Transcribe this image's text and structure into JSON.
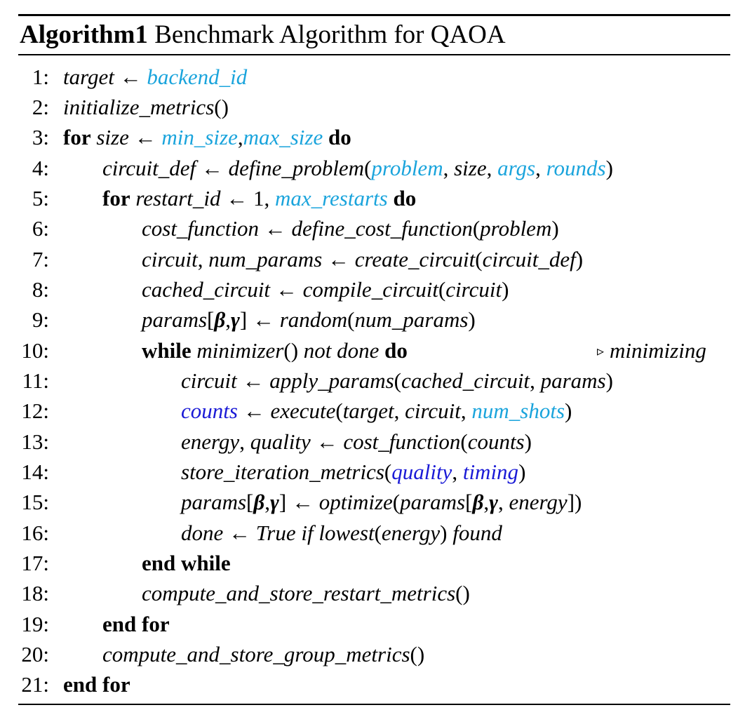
{
  "title": {
    "label": "Algorithm1",
    "text": "Benchmark Algorithm for QAOA"
  },
  "lines": [
    {
      "num": "1:"
    },
    {
      "num": "2:"
    },
    {
      "num": "3:"
    },
    {
      "num": "4:"
    },
    {
      "num": "5:"
    },
    {
      "num": "6:"
    },
    {
      "num": "7:"
    },
    {
      "num": "8:"
    },
    {
      "num": "9:"
    },
    {
      "num": "10:"
    },
    {
      "num": "11:"
    },
    {
      "num": "12:"
    },
    {
      "num": "13:"
    },
    {
      "num": "14:"
    },
    {
      "num": "15:"
    },
    {
      "num": "16:"
    },
    {
      "num": "17:"
    },
    {
      "num": "18:"
    },
    {
      "num": "19:"
    },
    {
      "num": "20:"
    },
    {
      "num": "21:"
    }
  ],
  "tokens": {
    "target": "target",
    "arrow": "←",
    "backend_id": "backend_id",
    "initialize_metrics": "initialize_metrics",
    "parens_empty": "()",
    "for": "for",
    "do": "do",
    "size": "size",
    "min_size": "min_size",
    "comma": ",",
    "max_size": "max_size",
    "circuit_def": "circuit_def",
    "define_problem": "define_problem",
    "lparen": "(",
    "rparen": ")",
    "problem": "problem",
    "args": "args",
    "rounds": "rounds",
    "restart_id": "restart_id",
    "one": "1",
    "max_restarts": "max_restarts",
    "cost_function": "cost_function",
    "define_cost_function": "define_cost_function",
    "circuit": "circuit",
    "num_params": "num_params",
    "create_circuit": "create_circuit",
    "cached_circuit": "cached_circuit",
    "compile_circuit": "compile_circuit",
    "params": "params",
    "lbracket": "[",
    "rbracket": "]",
    "beta": "β",
    "gamma": "γ",
    "random": "random",
    "while": "while",
    "minimizer": "minimizer",
    "not_done": "not done",
    "comment_minimizing": "minimizing",
    "apply_params": "apply_params",
    "counts": "counts",
    "execute": "execute",
    "num_shots": "num_shots",
    "energy": "energy",
    "quality": "quality",
    "store_iteration_metrics": "store_iteration_metrics",
    "timing": "timing",
    "optimize": "optimize",
    "done": "done",
    "true_if": "True if",
    "lowest": "lowest",
    "found": "found",
    "end_while": "end while",
    "compute_and_store_restart_metrics": "compute_and_store_restart_metrics",
    "end_for": "end for",
    "compute_and_store_group_metrics": "compute_and_store_group_metrics"
  },
  "colors": {
    "input_param": "#1aa4dc",
    "output_metric": "#1a1ad6"
  }
}
